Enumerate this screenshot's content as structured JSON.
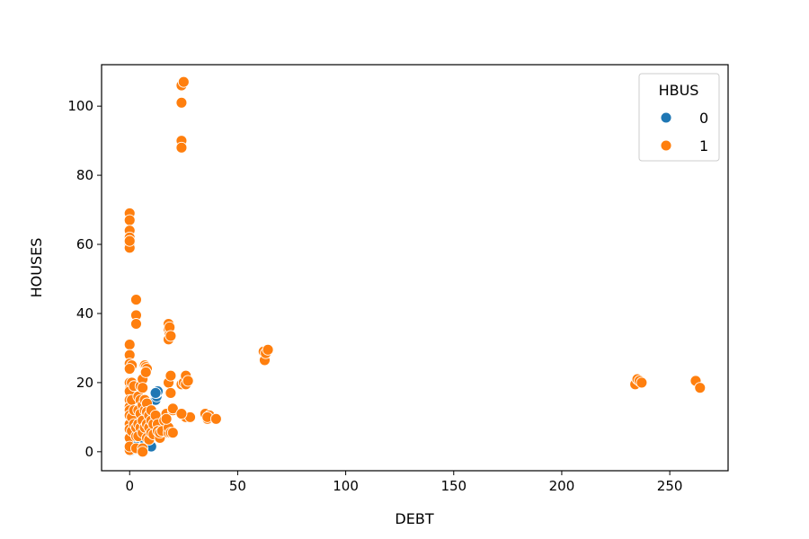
{
  "chart_data": {
    "type": "scatter",
    "title": "",
    "xlabel": "DEBT",
    "ylabel": "HOUSES",
    "xlim": [
      -13,
      277
    ],
    "ylim": [
      -5.5,
      112
    ],
    "xticks": [
      0,
      50,
      100,
      150,
      200,
      250
    ],
    "yticks": [
      0,
      20,
      40,
      60,
      80,
      100
    ],
    "grid": false,
    "legend": {
      "title": "HBUS",
      "placement": "top-right"
    },
    "series": [
      {
        "name": "0",
        "color": "#1f77b4",
        "points": [
          [
            0,
            0.5
          ],
          [
            0,
            1
          ],
          [
            0.5,
            1.5
          ],
          [
            1,
            2
          ],
          [
            0.5,
            3.5
          ],
          [
            1,
            5
          ],
          [
            0.3,
            0.3
          ],
          [
            2,
            2.5
          ],
          [
            1.5,
            1
          ],
          [
            3,
            1
          ],
          [
            9,
            1.5
          ],
          [
            10,
            1.5
          ],
          [
            12,
            15
          ],
          [
            12.5,
            16
          ],
          [
            12.5,
            17
          ],
          [
            13,
            17.5
          ],
          [
            12,
            17
          ],
          [
            4,
            5
          ],
          [
            5,
            5.5
          ],
          [
            6,
            4
          ],
          [
            8,
            6
          ]
        ]
      },
      {
        "name": "1",
        "color": "#ff7f0e",
        "points": [
          [
            0,
            69
          ],
          [
            0,
            67
          ],
          [
            0,
            64
          ],
          [
            0,
            62
          ],
          [
            0,
            61
          ],
          [
            0,
            60
          ],
          [
            0,
            59
          ],
          [
            0,
            61
          ],
          [
            3,
            44
          ],
          [
            3,
            39.5
          ],
          [
            3,
            37
          ],
          [
            0,
            31
          ],
          [
            0,
            28
          ],
          [
            0,
            25.5
          ],
          [
            1,
            25
          ],
          [
            0,
            24
          ],
          [
            0,
            20
          ],
          [
            0,
            18
          ],
          [
            0,
            17.5
          ],
          [
            0,
            15
          ],
          [
            0,
            13
          ],
          [
            0,
            12
          ],
          [
            0,
            10.5
          ],
          [
            0,
            8
          ],
          [
            0,
            6.5
          ],
          [
            0,
            4
          ],
          [
            0,
            0.5
          ],
          [
            0,
            1.5
          ],
          [
            1,
            20
          ],
          [
            1,
            15
          ],
          [
            1,
            10
          ],
          [
            1,
            6
          ],
          [
            2,
            19
          ],
          [
            2,
            12
          ],
          [
            2,
            8
          ],
          [
            3,
            4.5
          ],
          [
            3,
            7
          ],
          [
            3,
            1
          ],
          [
            4,
            16
          ],
          [
            4,
            12
          ],
          [
            4,
            8
          ],
          [
            4,
            4.5
          ],
          [
            5,
            19
          ],
          [
            5,
            15
          ],
          [
            5,
            11
          ],
          [
            5,
            7
          ],
          [
            6,
            21
          ],
          [
            6,
            18.5
          ],
          [
            6,
            13.5
          ],
          [
            6,
            9
          ],
          [
            6,
            5.5
          ],
          [
            6,
            1
          ],
          [
            6,
            0
          ],
          [
            7,
            15
          ],
          [
            7,
            12
          ],
          [
            7,
            7
          ],
          [
            7,
            25
          ],
          [
            7.5,
            24.5
          ],
          [
            8,
            24
          ],
          [
            7.5,
            23
          ],
          [
            8,
            14
          ],
          [
            8,
            11.5
          ],
          [
            8,
            8
          ],
          [
            8,
            4
          ],
          [
            9,
            10.5
          ],
          [
            9,
            7
          ],
          [
            9,
            3.5
          ],
          [
            10,
            12
          ],
          [
            10,
            9
          ],
          [
            10,
            5.5
          ],
          [
            11,
            8
          ],
          [
            11,
            5
          ],
          [
            12,
            10.5
          ],
          [
            13,
            8
          ],
          [
            13,
            6
          ],
          [
            14,
            4
          ],
          [
            14,
            5.5
          ],
          [
            15,
            6
          ],
          [
            16,
            9
          ],
          [
            17,
            11
          ],
          [
            18,
            5.5
          ],
          [
            18,
            7
          ],
          [
            19,
            5.5
          ],
          [
            20,
            5.5
          ],
          [
            17,
            9.5
          ],
          [
            18,
            37
          ],
          [
            18,
            35.5
          ],
          [
            18.5,
            34
          ],
          [
            18,
            32.5
          ],
          [
            18.5,
            36
          ],
          [
            19,
            33.5
          ],
          [
            18,
            20
          ],
          [
            19,
            22
          ],
          [
            19,
            17
          ],
          [
            20,
            12
          ],
          [
            20,
            12.5
          ],
          [
            24,
            106
          ],
          [
            25,
            107
          ],
          [
            24,
            101
          ],
          [
            24,
            90
          ],
          [
            24,
            88
          ],
          [
            24,
            19.5
          ],
          [
            25,
            20
          ],
          [
            26,
            22
          ],
          [
            26,
            19.5
          ],
          [
            27,
            20.5
          ],
          [
            25,
            10.5
          ],
          [
            26,
            10
          ],
          [
            28,
            10
          ],
          [
            24,
            11
          ],
          [
            35,
            11
          ],
          [
            36,
            9.5
          ],
          [
            37,
            10.5
          ],
          [
            36,
            10
          ],
          [
            40,
            9.5
          ],
          [
            62,
            29
          ],
          [
            62.5,
            26.5
          ],
          [
            63,
            28.5
          ],
          [
            64,
            29.5
          ],
          [
            234,
            19.5
          ],
          [
            235,
            21
          ],
          [
            236,
            20.5
          ],
          [
            237,
            20
          ],
          [
            262,
            20.5
          ],
          [
            264,
            18.5
          ]
        ]
      }
    ]
  }
}
